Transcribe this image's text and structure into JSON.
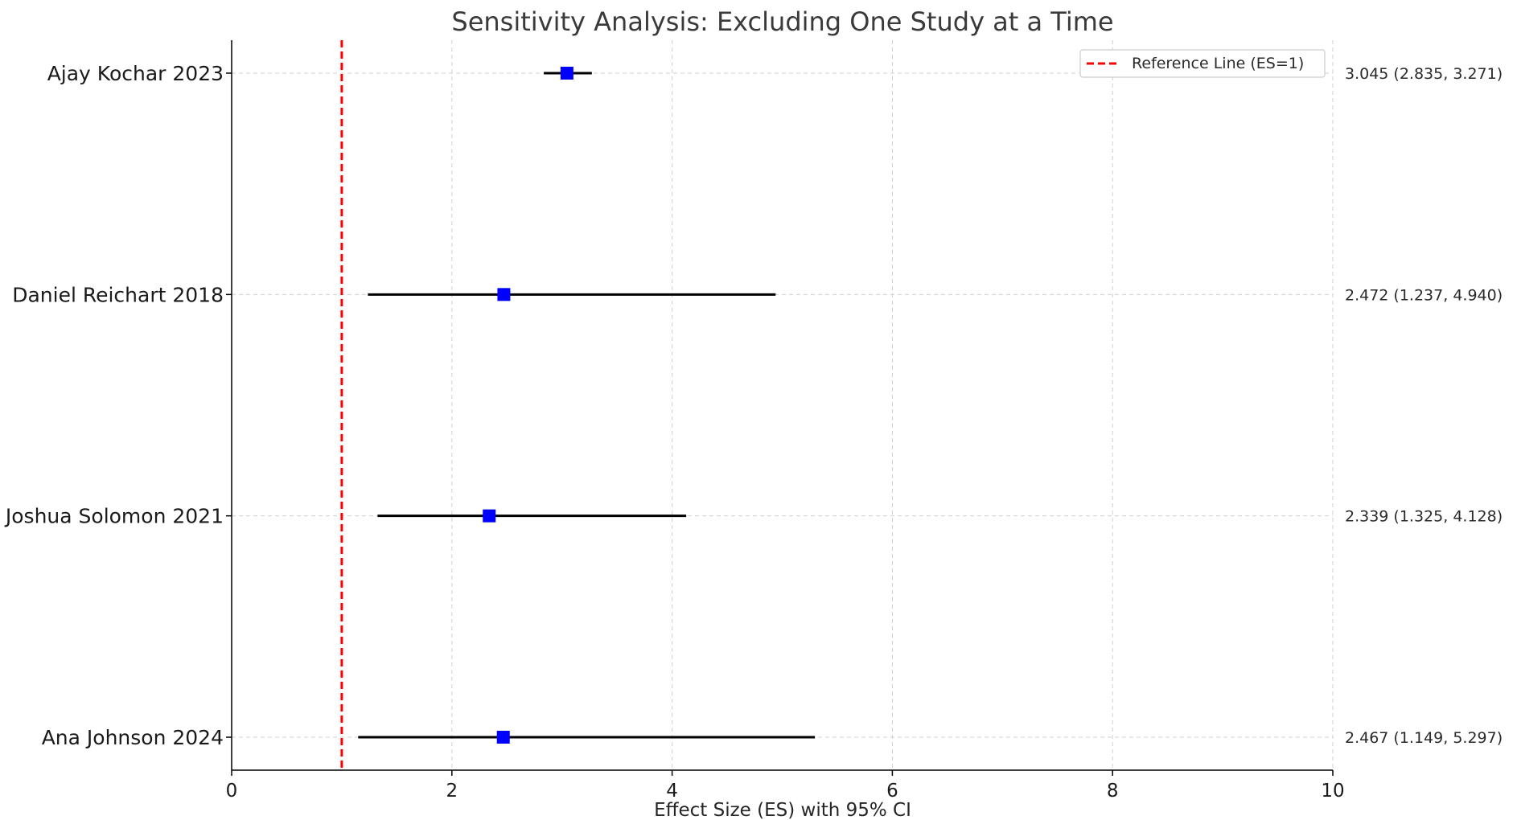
{
  "chart_data": {
    "type": "forest",
    "title": "Sensitivity Analysis: Excluding One Study at a Time",
    "xlabel": "Effect Size (ES) with 95% CI",
    "ylabel": "",
    "xlim": [
      0,
      10
    ],
    "xticks": [
      0,
      2,
      4,
      6,
      8,
      10
    ],
    "grid": true,
    "studies": [
      {
        "label": "Ajay Kochar 2023",
        "es": 3.045,
        "ci_low": 2.835,
        "ci_high": 3.271,
        "annotation": "3.045 (2.835, 3.271)"
      },
      {
        "label": "Daniel Reichart 2018",
        "es": 2.472,
        "ci_low": 1.237,
        "ci_high": 4.94,
        "annotation": "2.472 (1.237, 4.940)"
      },
      {
        "label": "Joshua Solomon 2021",
        "es": 2.339,
        "ci_low": 1.325,
        "ci_high": 4.128,
        "annotation": "2.339 (1.325, 4.128)"
      },
      {
        "label": "Ana Johnson 2024",
        "es": 2.467,
        "ci_low": 1.149,
        "ci_high": 5.297,
        "annotation": "2.467 (1.149, 5.297)"
      }
    ],
    "reference_line": {
      "value": 1,
      "label": "Reference Line (ES=1)",
      "color": "#ff0000"
    },
    "marker_color": "#0000ff",
    "ci_color": "#000000",
    "legend_position": "top-right"
  }
}
